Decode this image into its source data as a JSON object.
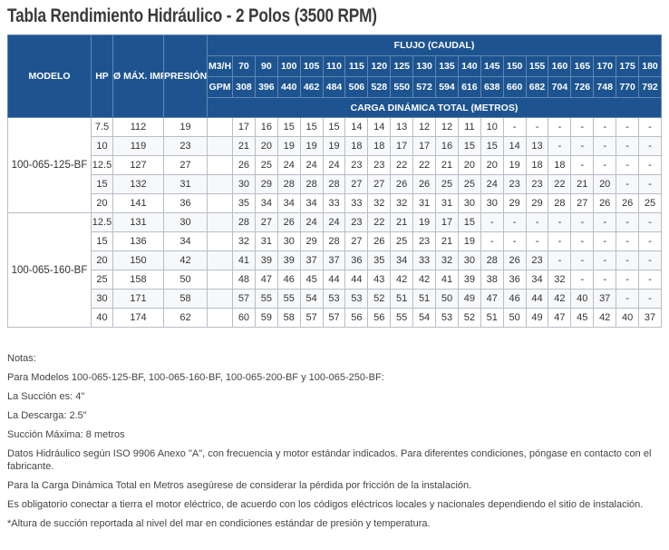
{
  "title": "Tabla Rendimiento Hidráulico - 2 Polos (3500 RPM)",
  "table": {
    "headers": {
      "model": "MODELO",
      "hp": "HP",
      "impeller": "Ø MÁX. IMPULSOR (MM)",
      "shutoff": "PRESIÓN CORTE (M)",
      "flow": "FLUJO (CAUDAL)",
      "m3h_label": "M3/H",
      "gpm_label": "GPM",
      "tdh": "CARGA DINÁMICA TOTAL (METROS)"
    },
    "m3h": [
      "70",
      "90",
      "100",
      "105",
      "110",
      "115",
      "120",
      "125",
      "130",
      "135",
      "140",
      "145",
      "150",
      "155",
      "160",
      "165",
      "170",
      "175",
      "180"
    ],
    "gpm": [
      "308",
      "396",
      "440",
      "462",
      "484",
      "506",
      "528",
      "550",
      "572",
      "594",
      "616",
      "638",
      "660",
      "682",
      "704",
      "726",
      "748",
      "770",
      "792"
    ],
    "groups": [
      {
        "model": "100-065-125-BF",
        "rows": [
          {
            "hp": "7.5",
            "imp": "112",
            "press": "19",
            "vals": [
              "17",
              "16",
              "15",
              "15",
              "15",
              "14",
              "14",
              "13",
              "12",
              "12",
              "11",
              "10",
              "-",
              "-",
              "-",
              "-",
              "-",
              "-",
              "-"
            ]
          },
          {
            "hp": "10",
            "imp": "119",
            "press": "23",
            "vals": [
              "21",
              "20",
              "19",
              "19",
              "19",
              "18",
              "18",
              "17",
              "17",
              "16",
              "15",
              "15",
              "14",
              "13",
              "-",
              "-",
              "-",
              "-",
              "-"
            ]
          },
          {
            "hp": "12.5",
            "imp": "127",
            "press": "27",
            "vals": [
              "26",
              "25",
              "24",
              "24",
              "24",
              "23",
              "23",
              "22",
              "22",
              "21",
              "20",
              "20",
              "19",
              "18",
              "18",
              "-",
              "-",
              "-",
              "-"
            ]
          },
          {
            "hp": "15",
            "imp": "132",
            "press": "31",
            "vals": [
              "30",
              "29",
              "28",
              "28",
              "28",
              "27",
              "27",
              "26",
              "26",
              "25",
              "25",
              "24",
              "23",
              "23",
              "22",
              "21",
              "20",
              "-",
              "-"
            ]
          },
          {
            "hp": "20",
            "imp": "141",
            "press": "36",
            "vals": [
              "35",
              "34",
              "34",
              "34",
              "33",
              "33",
              "32",
              "32",
              "31",
              "31",
              "30",
              "30",
              "29",
              "29",
              "28",
              "27",
              "26",
              "26",
              "25"
            ]
          }
        ]
      },
      {
        "model": "100-065-160-BF",
        "rows": [
          {
            "hp": "12.5",
            "imp": "131",
            "press": "30",
            "vals": [
              "28",
              "27",
              "26",
              "24",
              "24",
              "23",
              "22",
              "21",
              "19",
              "17",
              "15",
              "-",
              "-",
              "-",
              "-",
              "-",
              "-",
              "-",
              "-"
            ]
          },
          {
            "hp": "15",
            "imp": "136",
            "press": "34",
            "vals": [
              "32",
              "31",
              "30",
              "29",
              "28",
              "27",
              "26",
              "25",
              "23",
              "21",
              "19",
              "-",
              "-",
              "-",
              "-",
              "-",
              "-",
              "-",
              "-"
            ]
          },
          {
            "hp": "20",
            "imp": "150",
            "press": "42",
            "vals": [
              "41",
              "39",
              "39",
              "37",
              "37",
              "36",
              "35",
              "34",
              "33",
              "32",
              "30",
              "28",
              "26",
              "23",
              "-",
              "-",
              "-",
              "-",
              "-"
            ]
          },
          {
            "hp": "25",
            "imp": "158",
            "press": "50",
            "vals": [
              "48",
              "47",
              "46",
              "45",
              "44",
              "44",
              "43",
              "42",
              "42",
              "41",
              "39",
              "38",
              "36",
              "34",
              "32",
              "-",
              "-",
              "-",
              "-"
            ]
          },
          {
            "hp": "30",
            "imp": "171",
            "press": "58",
            "vals": [
              "57",
              "55",
              "55",
              "54",
              "53",
              "53",
              "52",
              "51",
              "51",
              "50",
              "49",
              "47",
              "46",
              "44",
              "42",
              "40",
              "37",
              "-",
              "-"
            ]
          },
          {
            "hp": "40",
            "imp": "174",
            "press": "62",
            "vals": [
              "60",
              "59",
              "58",
              "57",
              "57",
              "56",
              "56",
              "55",
              "54",
              "53",
              "52",
              "51",
              "50",
              "49",
              "47",
              "45",
              "42",
              "40",
              "37"
            ]
          }
        ]
      }
    ]
  },
  "notes": {
    "heading": "Notas:",
    "models": "Para Modelos 100-065-125-BF, 100-065-160-BF, 100-065-200-BF y 100-065-250-BF:",
    "suction": "La Succión es: 4\"",
    "discharge": "La Descarga: 2.5\"",
    "max_suction": "Succión Máxima: 8 metros",
    "iso": "Datos Hidráulico según ISO 9906 Anexo \"A\", con frecuencia y motor estándar indicados. Para diferentes condiciones, póngase en contacto con el fabricante.",
    "friction": "Para la Carga Dinámica Total en Metros asegúrese de considerar la pérdida por fricción de la instalación.",
    "grounding": "Es obligatorio conectar a tierra el motor eléctrico, de acuerdo con los códigos eléctricos locales y nacionales dependiendo el sitio de instalación.",
    "altitude": "*Altura de succión reportada al nivel del mar en condiciones estándar de presión y temperatura."
  }
}
